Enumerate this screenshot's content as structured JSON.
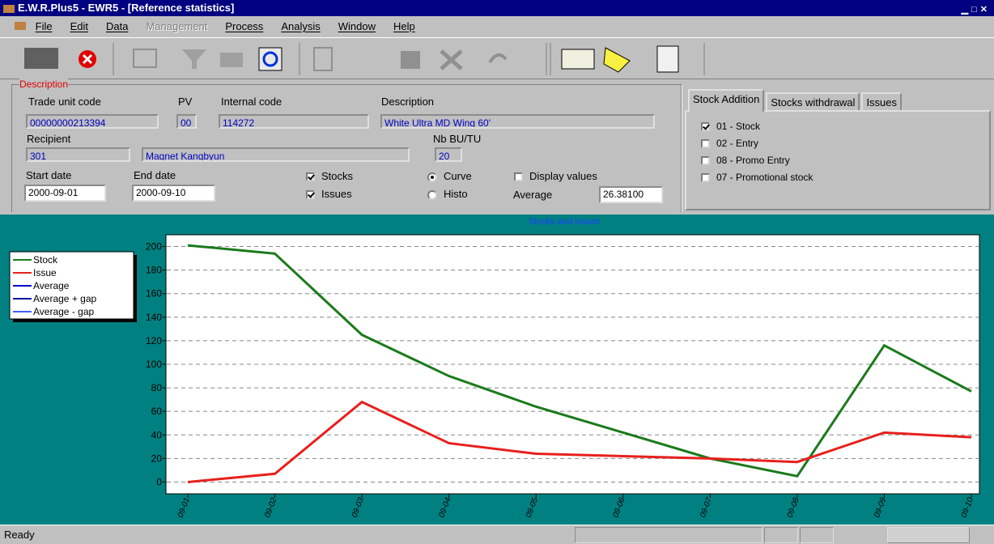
{
  "window": {
    "title": "E.W.R.Plus5 - EWR5 - [Reference statistics]",
    "menu": [
      {
        "label": "File",
        "enabled": true
      },
      {
        "label": "Edit",
        "enabled": true
      },
      {
        "label": "Data",
        "enabled": true
      },
      {
        "label": "Management",
        "enabled": false
      },
      {
        "label": "Process",
        "enabled": true
      },
      {
        "label": "Analysis",
        "enabled": true
      },
      {
        "label": "Window",
        "enabled": true
      },
      {
        "label": "Help",
        "enabled": true
      }
    ]
  },
  "form": {
    "group_label": "Description",
    "trade_unit_code": {
      "label": "Trade unit code",
      "value": "00000000213394"
    },
    "pv": {
      "label": "PV",
      "value": "00"
    },
    "internal_code": {
      "label": "Internal code",
      "value": "114272"
    },
    "description": {
      "label": "Description",
      "value": "White Ultra MD Wing 60'"
    },
    "recipient": {
      "label": "Recipient",
      "code": "301",
      "name": "Magnet Kangbyun"
    },
    "nb_bu_tu": {
      "label": "Nb BU/TU",
      "value": "20"
    },
    "start_date": {
      "label": "Start date",
      "value": "2000-09-01"
    },
    "end_date": {
      "label": "End date",
      "value": "2000-09-10"
    },
    "checkboxes": [
      {
        "label": "Stocks",
        "checked": true
      },
      {
        "label": "Issues",
        "checked": true
      },
      {
        "label": "Display values",
        "checked": false
      }
    ],
    "radios": [
      {
        "label": "Curve",
        "selected": true
      },
      {
        "label": "Histo",
        "selected": false
      }
    ],
    "average": {
      "label": "Average",
      "value": "26.38100"
    }
  },
  "tabs": [
    {
      "label": "Stock Addition",
      "active": true
    },
    {
      "label": "Stocks withdrawal",
      "active": false
    },
    {
      "label": "Issues",
      "active": false
    }
  ],
  "tab_options": [
    {
      "label": "01 - Stock",
      "checked": true
    },
    {
      "label": "02 - Entry",
      "checked": false
    },
    {
      "label": "08 - Promo Entry",
      "checked": false
    },
    {
      "label": "07 - Promotional stock",
      "checked": false
    }
  ],
  "chart_data": {
    "type": "line",
    "title": "Stocks and issues",
    "categories": [
      "09-01",
      "09-02",
      "09-03",
      "09-04",
      "09-05",
      "09-06",
      "09-07",
      "09-08",
      "09-09",
      "09-10"
    ],
    "series": [
      {
        "name": "Stock",
        "color": "#1a7a1a",
        "values": [
          201,
          194,
          125,
          90,
          64,
          42,
          20,
          5,
          116,
          77
        ]
      },
      {
        "name": "Issue",
        "color": "#e8201c",
        "values": [
          0,
          7,
          68,
          33,
          24,
          22,
          20,
          17,
          42,
          38
        ]
      }
    ],
    "extra_legend": [
      {
        "name": "Average",
        "color": "#0000c8"
      },
      {
        "name": "Average + gap",
        "color": "#1010a0"
      },
      {
        "name": "Average - gap",
        "color": "#4060ff"
      }
    ],
    "ylim": [
      -10,
      210
    ],
    "yticks": [
      0,
      20,
      40,
      60,
      80,
      100,
      120,
      140,
      160,
      180,
      200
    ],
    "grid": true,
    "legend": "left"
  },
  "status_bar": {
    "text": "Ready"
  }
}
